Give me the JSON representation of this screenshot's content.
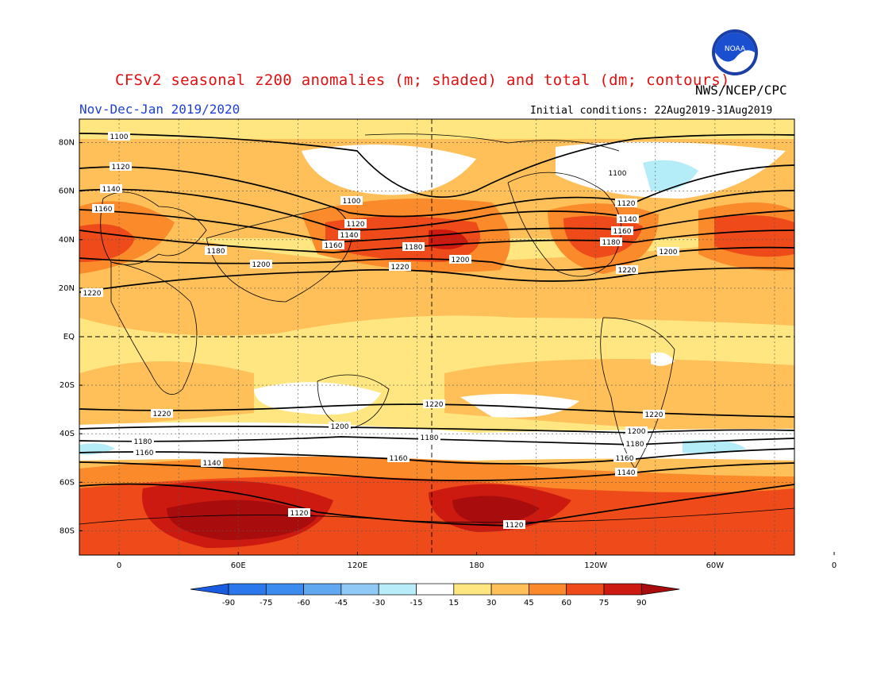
{
  "header": {
    "title": "CFSv2 seasonal z200 anomalies (m; shaded) and total (dm; contours)",
    "agency": "NWS/NCEP/CPC",
    "period": "Nov-Dec-Jan 2019/2020",
    "initial_conditions": "Initial conditions: 22Aug2019-31Aug2019",
    "logo_text": "NOAA"
  },
  "map": {
    "lat_labels": [
      "80N",
      "60N",
      "40N",
      "20N",
      "EQ",
      "20S",
      "40S",
      "60S",
      "80S"
    ],
    "lon_labels": [
      "0",
      "60E",
      "120E",
      "180",
      "120W",
      "60W",
      "0"
    ],
    "colors": {
      "light_yellow": "#ffe680",
      "yellow": "#ffc05a",
      "orange": "#fa8a2a",
      "red_orange": "#ee4a1a",
      "red": "#cc1a10",
      "dark_red": "#a80c0c",
      "white": "#ffffff",
      "light_cyan": "#b4ecf8",
      "contour": "#000000",
      "grid": "#555555"
    },
    "contours": [
      {
        "value": "1100",
        "label_points": [
          [
            150,
            172
          ],
          [
            443,
            253
          ],
          [
            778,
            218
          ]
        ]
      },
      {
        "value": "1120",
        "label_points": [
          [
            152,
            210
          ],
          [
            448,
            282
          ],
          [
            789,
            256
          ],
          [
            377,
            646
          ],
          [
            648,
            661
          ]
        ]
      },
      {
        "value": "1140",
        "label_points": [
          [
            140,
            238
          ],
          [
            440,
            296
          ],
          [
            791,
            276
          ],
          [
            267,
            583
          ],
          [
            789,
            595
          ]
        ]
      },
      {
        "value": "1160",
        "label_points": [
          [
            130,
            263
          ],
          [
            420,
            309
          ],
          [
            784,
            291
          ],
          [
            182,
            570
          ],
          [
            502,
            577
          ],
          [
            787,
            577
          ]
        ]
      },
      {
        "value": "1180",
        "label_points": [
          [
            272,
            316
          ],
          [
            521,
            311
          ],
          [
            770,
            305
          ],
          [
            180,
            556
          ],
          [
            541,
            551
          ],
          [
            800,
            559
          ]
        ]
      },
      {
        "value": "1200",
        "label_points": [
          [
            329,
            333
          ],
          [
            580,
            327
          ],
          [
            842,
            317
          ],
          [
            428,
            537
          ],
          [
            802,
            543
          ]
        ]
      },
      {
        "value": "1220",
        "label_points": [
          [
            116,
            369
          ],
          [
            504,
            336
          ],
          [
            790,
            340
          ],
          [
            204,
            521
          ],
          [
            547,
            509
          ],
          [
            824,
            522
          ]
        ]
      }
    ]
  },
  "colorbar": {
    "labels": [
      "-90",
      "-75",
      "-60",
      "-45",
      "-30",
      "-15",
      "15",
      "30",
      "45",
      "60",
      "75",
      "90"
    ],
    "colors": [
      "#1a5ce0",
      "#2a78ec",
      "#3c8cf0",
      "#60a8f0",
      "#90c8f6",
      "#b8ecf8",
      "#ffffff",
      "#ffe680",
      "#ffc05a",
      "#fa8a2a",
      "#ee4a1a",
      "#cc1a10",
      "#a80c0c"
    ]
  }
}
